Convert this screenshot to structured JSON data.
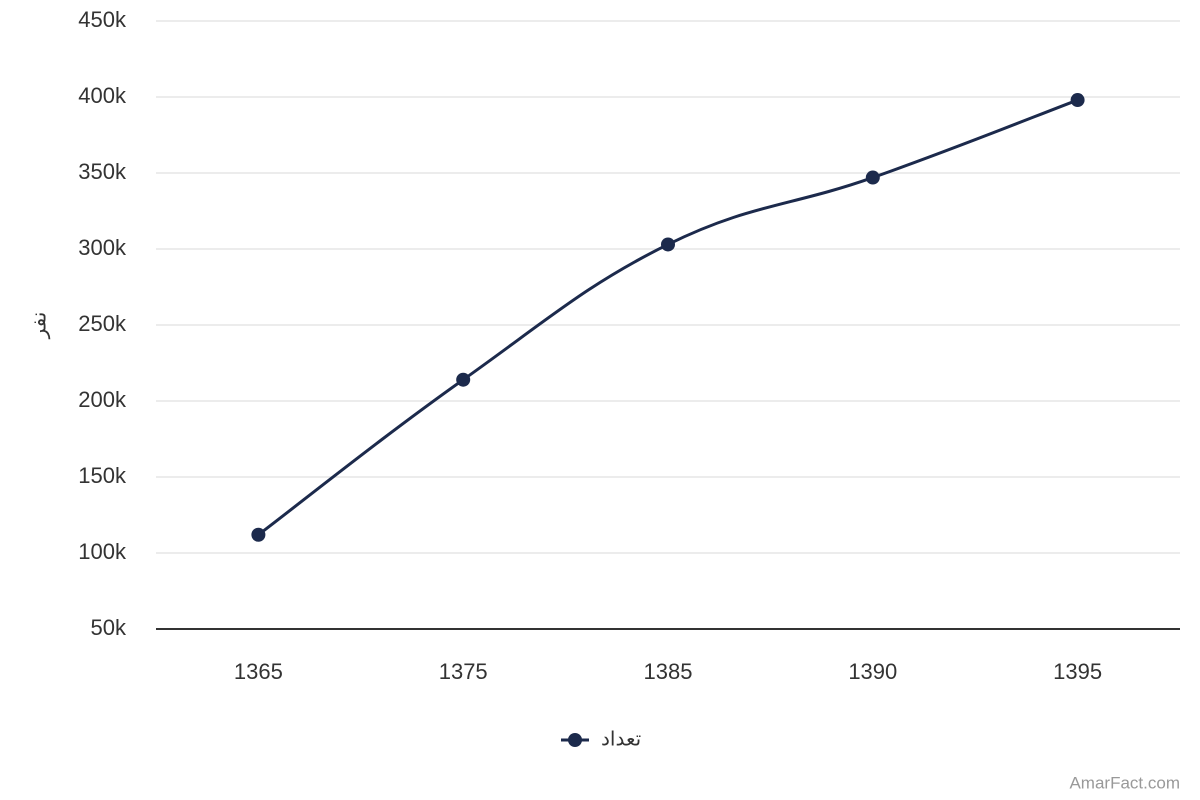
{
  "chart_data": {
    "type": "line",
    "y_label": "نفر",
    "categories": [
      "1365",
      "1375",
      "1385",
      "1390",
      "1395"
    ],
    "series": [
      {
        "name": "تعداد",
        "color": "#1c2a4c",
        "values": [
          112000,
          214000,
          303000,
          347000,
          398000
        ]
      }
    ],
    "ylim": [
      50000,
      450000
    ],
    "yticks": [
      {
        "value": 50000,
        "label": "50k"
      },
      {
        "value": 100000,
        "label": "100k"
      },
      {
        "value": 150000,
        "label": "150k"
      },
      {
        "value": 200000,
        "label": "200k"
      },
      {
        "value": 250000,
        "label": "250k"
      },
      {
        "value": 300000,
        "label": "300k"
      },
      {
        "value": 350000,
        "label": "350k"
      },
      {
        "value": 400000,
        "label": "400k"
      },
      {
        "value": 450000,
        "label": "450k"
      }
    ],
    "grid": true,
    "smooth": true,
    "legend": "bottom",
    "credit": "AmarFact.com"
  }
}
